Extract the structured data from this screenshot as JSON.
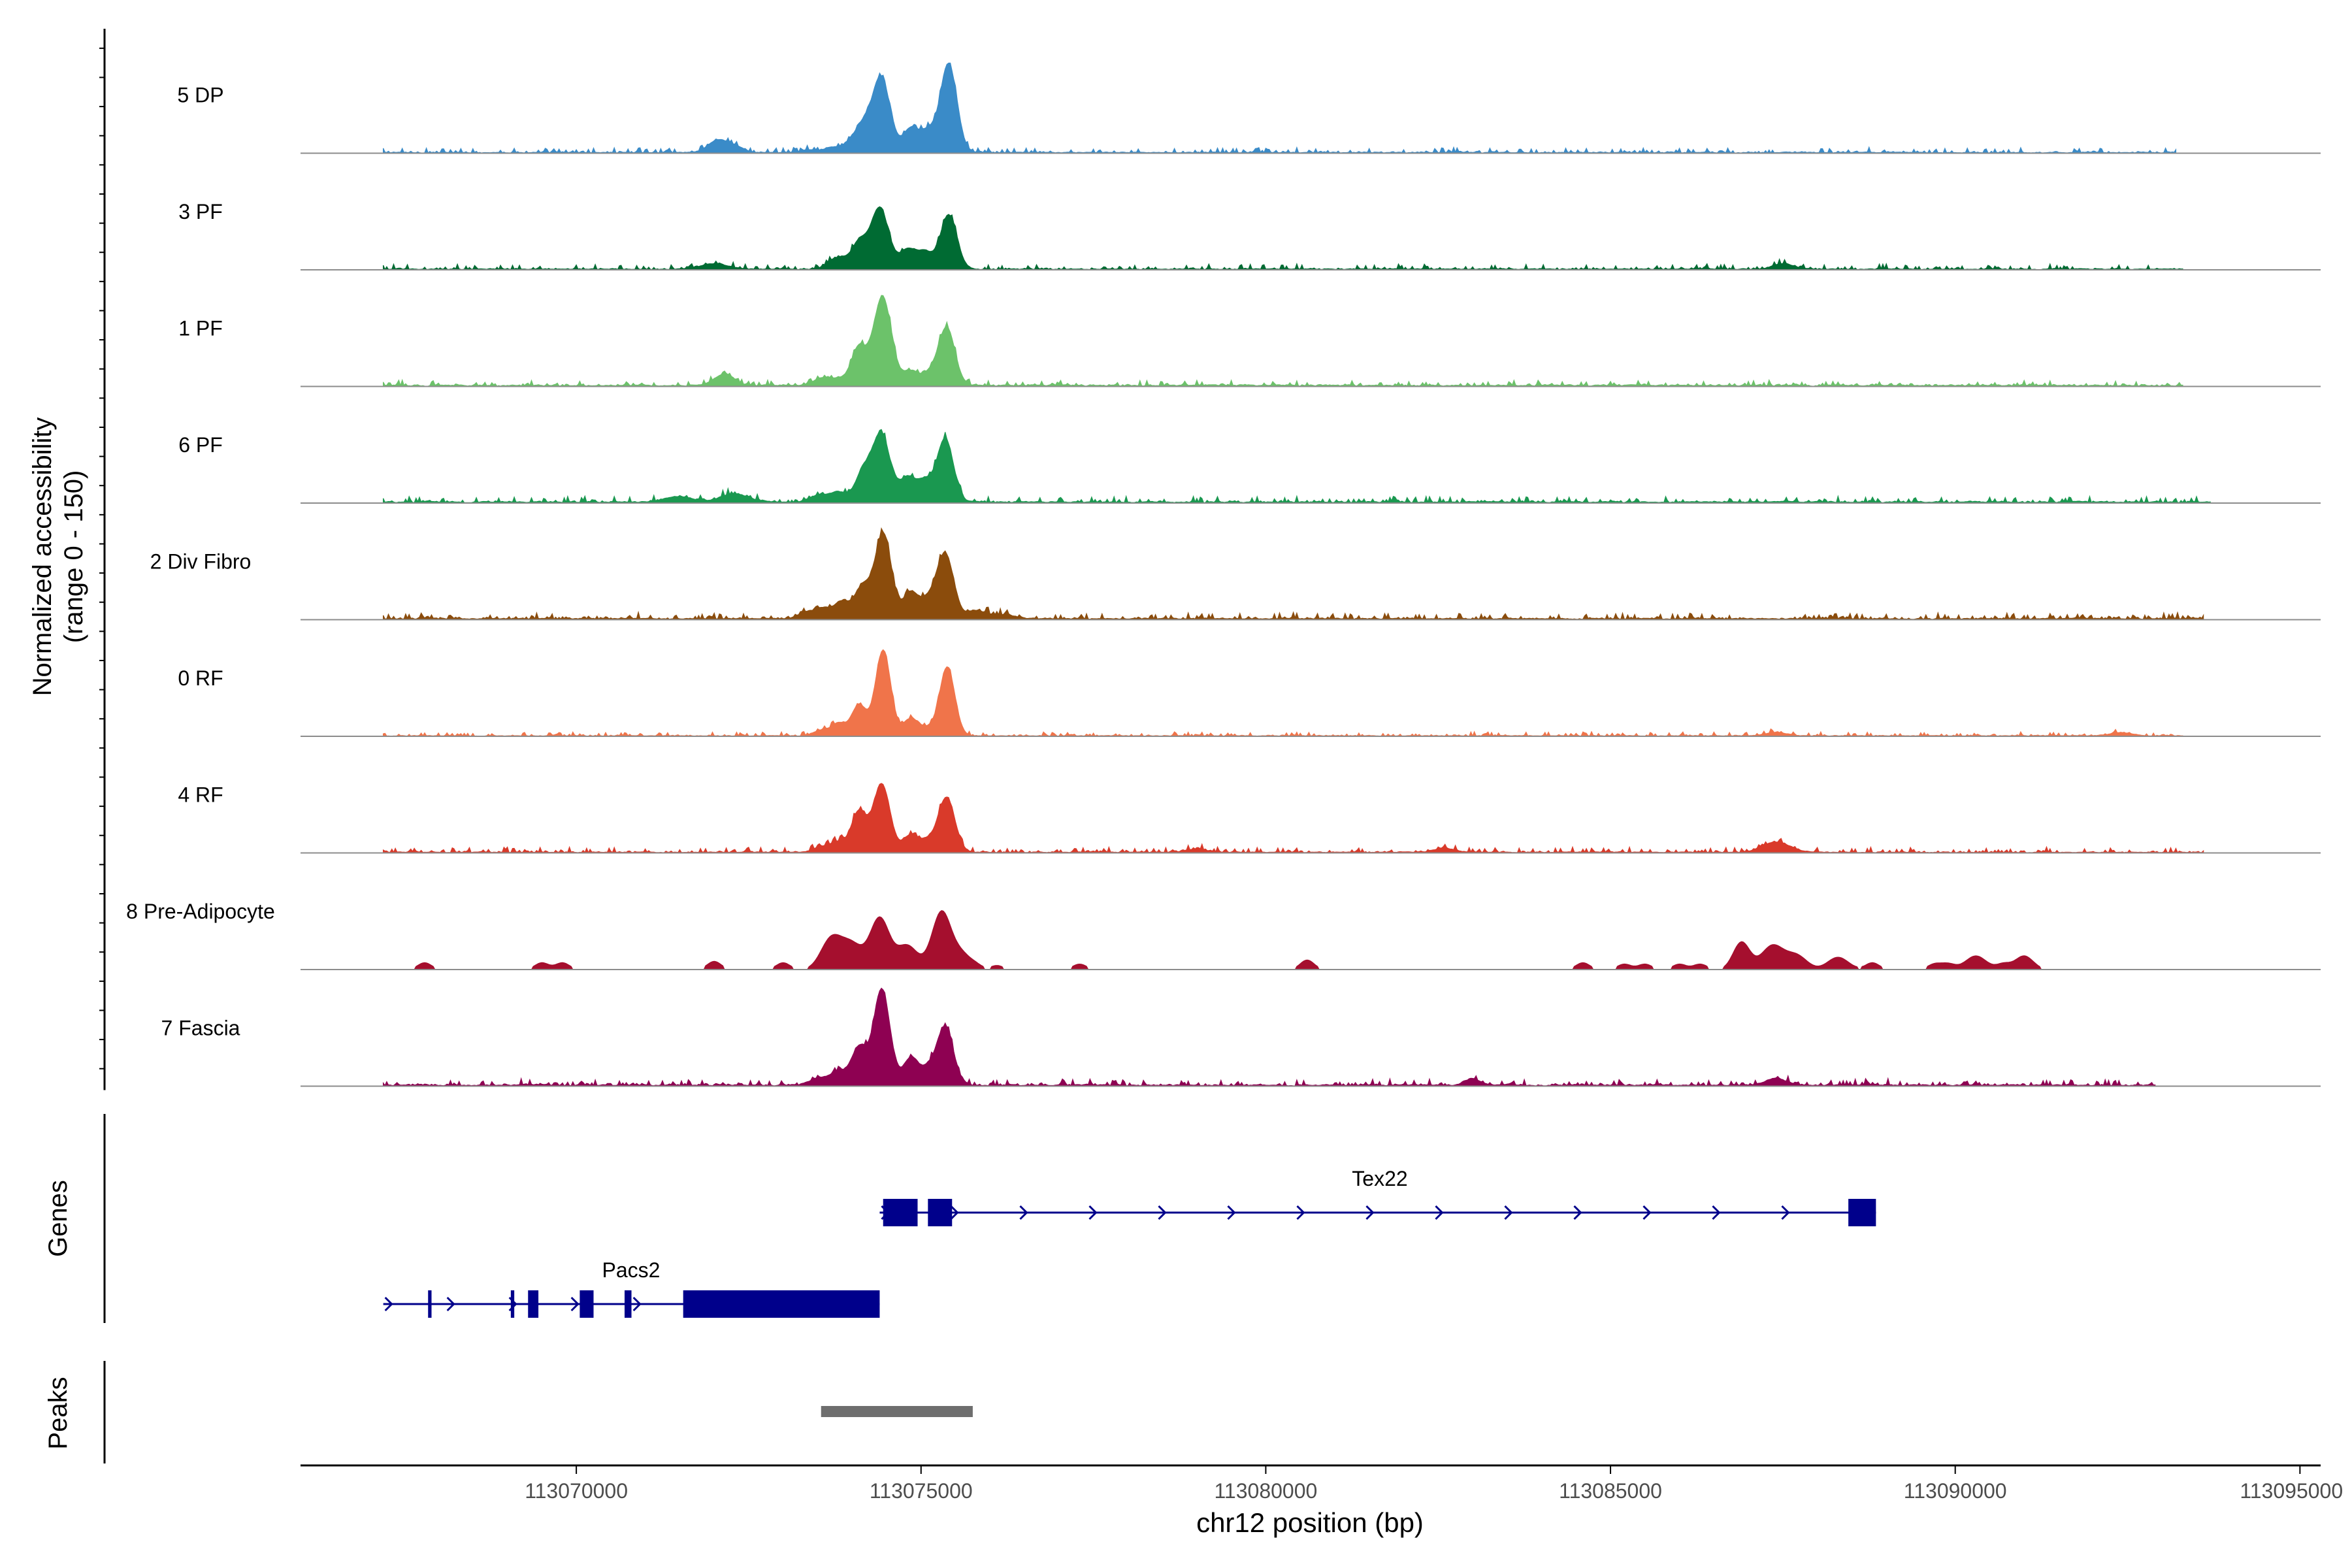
{
  "chart_data": {
    "type": "area",
    "title": "",
    "ylabel_lines": [
      "Normalized accessibility",
      "(range 0 - 150)"
    ],
    "xlabel": "chr12 position (bp)",
    "xlim": [
      113066000,
      113095300
    ],
    "ylim": [
      0,
      150
    ],
    "x_ticks": [
      113070000,
      113075000,
      113080000,
      113085000,
      113090000,
      113095000
    ],
    "x_tick_labels": [
      "113070000",
      "113075000",
      "113080000",
      "113085000",
      "113090000",
      "113095000"
    ],
    "genes_label": "Genes",
    "peaks_label": "Peaks",
    "series": [
      {
        "name": "5 DP",
        "color": "#3A8BC8",
        "range": [
          113067200,
          113093200
        ],
        "background": 2,
        "noise": 2.5,
        "min_height": 0,
        "peaks": [
          [
            113074420,
            110,
            130
          ],
          [
            113075400,
            130,
            120
          ],
          [
            113074150,
            35,
            110
          ],
          [
            113074850,
            35,
            110
          ],
          [
            113075100,
            30,
            110
          ],
          [
            113073950,
            12,
            100
          ],
          [
            113073700,
            8,
            100
          ],
          [
            113072050,
            18,
            140
          ],
          [
            113072300,
            8,
            120
          ],
          [
            113073400,
            4,
            100
          ]
        ]
      },
      {
        "name": "3 PF",
        "color": "#006B33",
        "range": [
          113067200,
          113093300
        ],
        "background": 2,
        "noise": 2.5,
        "min_height": 0,
        "peaks": [
          [
            113074400,
            90,
            130
          ],
          [
            113075400,
            80,
            120
          ],
          [
            113074100,
            38,
            110
          ],
          [
            113074800,
            28,
            110
          ],
          [
            113075050,
            25,
            110
          ],
          [
            113073850,
            12,
            100
          ],
          [
            113073700,
            10,
            100
          ],
          [
            113072000,
            8,
            200
          ],
          [
            113087500,
            8,
            150
          ]
        ]
      },
      {
        "name": "1 PF",
        "color": "#6CC26A",
        "range": [
          113067200,
          113093300
        ],
        "background": 3,
        "noise": 2.5,
        "min_height": 0,
        "peaks": [
          [
            113074440,
            130,
            130
          ],
          [
            113075370,
            85,
            120
          ],
          [
            113074100,
            55,
            110
          ],
          [
            113074850,
            20,
            110
          ],
          [
            113075100,
            15,
            110
          ],
          [
            113073800,
            10,
            120
          ],
          [
            113073550,
            10,
            120
          ],
          [
            113072150,
            17,
            140
          ]
        ]
      },
      {
        "name": "6 PF",
        "color": "#1A9850",
        "range": [
          113067200,
          113093700
        ],
        "background": 3,
        "noise": 3,
        "min_height": 0,
        "peaks": [
          [
            113074420,
            100,
            130
          ],
          [
            113075350,
            92,
            120
          ],
          [
            113074150,
            40,
            110
          ],
          [
            113074800,
            35,
            110
          ],
          [
            113075050,
            30,
            110
          ],
          [
            113073800,
            15,
            120
          ],
          [
            113073500,
            10,
            120
          ],
          [
            113072300,
            12,
            200
          ],
          [
            113071500,
            8,
            200
          ]
        ]
      },
      {
        "name": "2 Div Fibro",
        "color": "#8B4C0C",
        "range": [
          113067200,
          113093600
        ],
        "background": 3,
        "noise": 3,
        "min_height": 0,
        "peaks": [
          [
            113074450,
            125,
            120
          ],
          [
            113075350,
            95,
            120
          ],
          [
            113074150,
            45,
            110
          ],
          [
            113074850,
            38,
            110
          ],
          [
            113075100,
            25,
            110
          ],
          [
            113073850,
            25,
            120
          ],
          [
            113073550,
            15,
            120
          ],
          [
            113073300,
            8,
            100
          ],
          [
            113075800,
            12,
            150
          ],
          [
            113076200,
            6,
            150
          ]
        ]
      },
      {
        "name": "0 RF",
        "color": "#F0744A",
        "range": [
          113067200,
          113093300
        ],
        "background": 1.5,
        "noise": 2,
        "min_height": 0,
        "peaks": [
          [
            113074450,
            125,
            110
          ],
          [
            113075380,
            100,
            110
          ],
          [
            113074100,
            45,
            110
          ],
          [
            113074850,
            25,
            110
          ],
          [
            113075100,
            10,
            110
          ],
          [
            113073800,
            18,
            100
          ],
          [
            113073550,
            8,
            100
          ],
          [
            113087400,
            5,
            150
          ],
          [
            113092400,
            5,
            150
          ]
        ]
      },
      {
        "name": "4 RF",
        "color": "#D93A2A",
        "range": [
          113067200,
          113093600
        ],
        "background": 2,
        "noise": 2.5,
        "min_height": 0,
        "peaks": [
          [
            113074430,
            100,
            120
          ],
          [
            113075370,
            80,
            120
          ],
          [
            113074100,
            60,
            110
          ],
          [
            113074850,
            25,
            110
          ],
          [
            113075100,
            15,
            110
          ],
          [
            113073800,
            15,
            110
          ],
          [
            113073550,
            8,
            110
          ],
          [
            113087400,
            15,
            200
          ],
          [
            113082600,
            6,
            150
          ],
          [
            113079000,
            5,
            150
          ]
        ]
      },
      {
        "name": "8 Pre-Adipocyte",
        "color": "#A50F2E",
        "range": [
          113067200,
          113093300
        ],
        "background": 0,
        "noise": 0,
        "min_height": 4,
        "peaks": [
          [
            113074400,
            75,
            140
          ],
          [
            113075300,
            85,
            140
          ],
          [
            113073700,
            45,
            150
          ],
          [
            113074000,
            35,
            150
          ],
          [
            113074800,
            35,
            150
          ],
          [
            113075600,
            20,
            120
          ],
          [
            113086900,
            40,
            120
          ],
          [
            113087350,
            35,
            160
          ],
          [
            113087700,
            20,
            150
          ],
          [
            113090300,
            20,
            150
          ],
          [
            113091000,
            20,
            130
          ],
          [
            113088300,
            18,
            150
          ],
          [
            113072000,
            12,
            100
          ],
          [
            113073000,
            10,
            100
          ],
          [
            113080600,
            14,
            100
          ],
          [
            113084600,
            10,
            100
          ],
          [
            113067800,
            10,
            100
          ],
          [
            113069500,
            10,
            100
          ],
          [
            113069800,
            10,
            100
          ],
          [
            113077300,
            8,
            100
          ],
          [
            113085200,
            8,
            100
          ],
          [
            113085500,
            8,
            100
          ],
          [
            113086000,
            8,
            100
          ],
          [
            113086300,
            8,
            100
          ],
          [
            113088800,
            10,
            100
          ],
          [
            113089700,
            8,
            100
          ],
          [
            113089900,
            8,
            100
          ],
          [
            113090700,
            8,
            100
          ],
          [
            113075800,
            6,
            90
          ],
          [
            113076100,
            6,
            90
          ]
        ]
      },
      {
        "name": "7 Fascia",
        "color": "#8E0152",
        "range": [
          113067200,
          113092900
        ],
        "background": 3,
        "noise": 3,
        "min_height": 0,
        "peaks": [
          [
            113074430,
            140,
            120
          ],
          [
            113075350,
            85,
            120
          ],
          [
            113074100,
            55,
            110
          ],
          [
            113074850,
            40,
            110
          ],
          [
            113075100,
            20,
            110
          ],
          [
            113073800,
            20,
            120
          ],
          [
            113073500,
            10,
            120
          ],
          [
            113083000,
            10,
            100
          ],
          [
            113087400,
            10,
            150
          ]
        ]
      }
    ],
    "genes": [
      {
        "name": "Tex22",
        "strand": "+",
        "start": 113074400,
        "end": 113088850,
        "exons": [
          [
            113074450,
            113074950
          ],
          [
            113075100,
            113075450
          ],
          [
            113088450,
            113088850
          ]
        ]
      },
      {
        "name": "Pacs2",
        "strand": "+",
        "start": 113067200,
        "end": 113074400,
        "exons": [
          [
            113067850,
            113067900
          ],
          [
            113069050,
            113069100
          ],
          [
            113069300,
            113069450
          ],
          [
            113070050,
            113070250
          ],
          [
            113070700,
            113070800
          ],
          [
            113071550,
            113074400
          ]
        ]
      }
    ],
    "peaks_regions": [
      [
        113073550,
        113075750
      ]
    ]
  }
}
